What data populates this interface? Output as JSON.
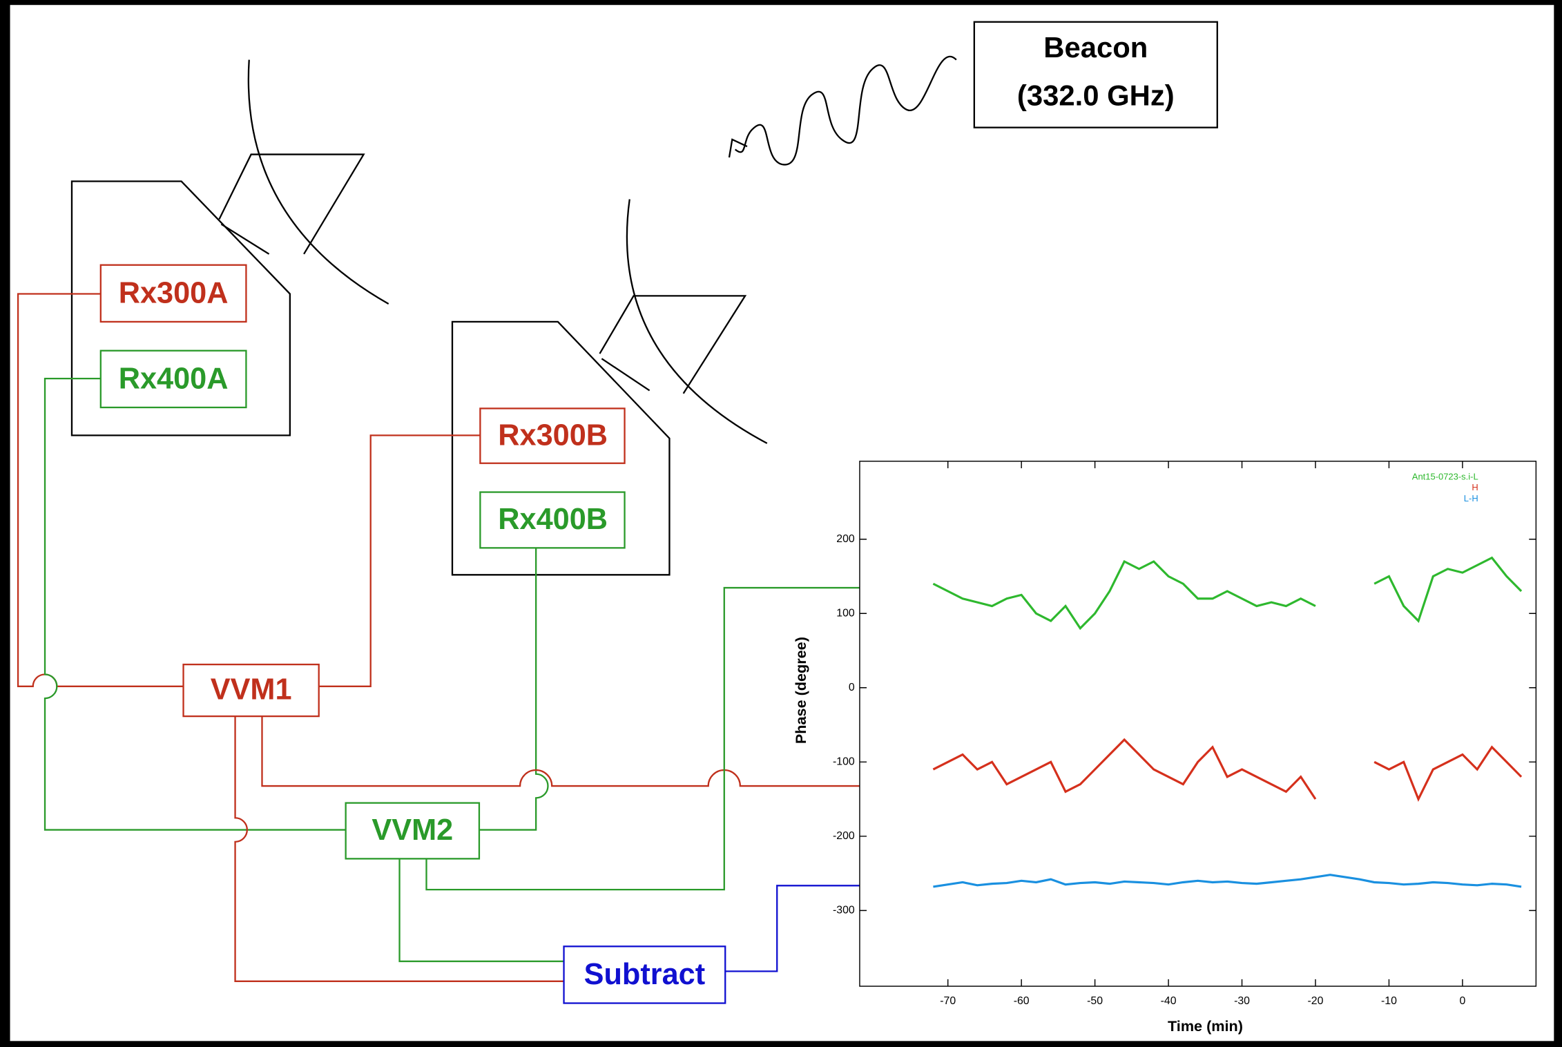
{
  "diagram": {
    "beacon": {
      "title": "Beacon",
      "frequency": "(332.0 GHz)"
    },
    "nodes": [
      {
        "label": "Rx300A"
      },
      {
        "label": "Rx400A"
      },
      {
        "label": "Rx300B"
      },
      {
        "label": "Rx400B"
      },
      {
        "label": "VVM1"
      },
      {
        "label": "VVM2"
      },
      {
        "label": "Subtract"
      }
    ]
  },
  "chart_data": {
    "type": "line",
    "xlabel": "Time (min)",
    "ylabel": "Phase (degree)",
    "x": [
      -72,
      -70,
      -68,
      -66,
      -64,
      -62,
      -60,
      -58,
      -56,
      -54,
      -52,
      -50,
      -48,
      -46,
      -44,
      -42,
      -40,
      -38,
      -36,
      -34,
      -32,
      -30,
      -28,
      -26,
      -24,
      -22,
      -20,
      -18,
      -16,
      -14,
      -12,
      -10,
      -8,
      -6,
      -4,
      -2,
      0,
      2,
      4,
      6,
      8
    ],
    "series": [
      {
        "name": "Ant15-0723-s.i-L",
        "color": "#2eb82e",
        "values": [
          140,
          130,
          120,
          115,
          110,
          120,
          125,
          100,
          90,
          110,
          80,
          100,
          130,
          170,
          160,
          170,
          150,
          140,
          120,
          120,
          130,
          120,
          110,
          115,
          110,
          120,
          110,
          null,
          null,
          null,
          140,
          150,
          110,
          90,
          150,
          160,
          155,
          165,
          175,
          150,
          130
        ]
      },
      {
        "name": "H",
        "color": "#d5301c",
        "values": [
          -110,
          -100,
          -90,
          -110,
          -100,
          -130,
          -120,
          -110,
          -100,
          -140,
          -130,
          -110,
          -90,
          -70,
          -90,
          -110,
          -120,
          -130,
          -100,
          -80,
          -120,
          -110,
          -120,
          -130,
          -140,
          -120,
          -150,
          null,
          null,
          null,
          -100,
          -110,
          -100,
          -150,
          -110,
          -100,
          -90,
          -110,
          -80,
          -100,
          -120
        ]
      },
      {
        "name": "L-H",
        "color": "#1a90e0",
        "values": [
          -268,
          -265,
          -262,
          -266,
          -264,
          -263,
          -260,
          -262,
          -258,
          -265,
          -263,
          -262,
          -264,
          -261,
          -262,
          -263,
          -265,
          -262,
          -260,
          -262,
          -261,
          -263,
          -264,
          -262,
          -260,
          -258,
          -255,
          -252,
          -255,
          -258,
          -262,
          -263,
          -265,
          -264,
          -262,
          -263,
          -265,
          -266,
          -264,
          -265,
          -268
        ]
      }
    ],
    "xlim": [
      -82,
      10
    ],
    "ylim": [
      -402,
      305
    ],
    "xticks": [
      -70,
      -60,
      -50,
      -40,
      -30,
      -20,
      -10,
      0
    ],
    "yticks": [
      200,
      100,
      0,
      -100,
      -200,
      -300
    ]
  }
}
